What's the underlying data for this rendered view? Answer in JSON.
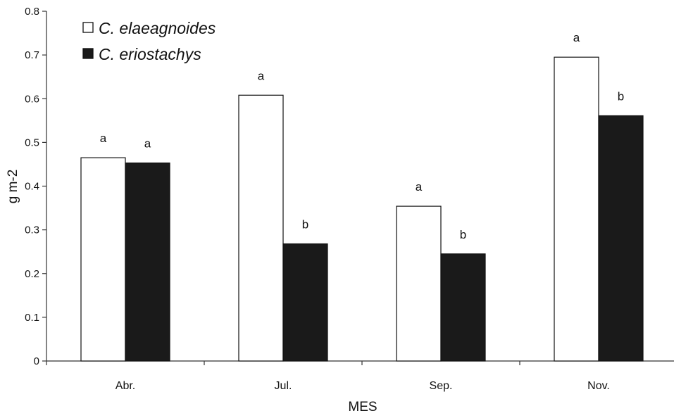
{
  "chart_data": {
    "type": "bar",
    "title": "",
    "xlabel": "MES",
    "ylabel": "g m-2",
    "ylim": [
      0,
      0.8
    ],
    "yticks": [
      0,
      0.1,
      0.2,
      0.3,
      0.4,
      0.5,
      0.6,
      0.7,
      0.8
    ],
    "ytick_labels": [
      "0",
      "0.1",
      "0.2",
      "0.3",
      "0.4",
      "0.5",
      "0.6",
      "0.7",
      "0.8"
    ],
    "categories": [
      "Abr.",
      "Jul.",
      "Sep.",
      "Nov."
    ],
    "series": [
      {
        "name": "C. elaeagnoides",
        "values": [
          0.465,
          0.608,
          0.354,
          0.695
        ],
        "letters": [
          "a",
          "a",
          "a",
          "a"
        ],
        "color": "#ffffff"
      },
      {
        "name": "C. eriostachys",
        "values": [
          0.453,
          0.268,
          0.245,
          0.561
        ],
        "letters": [
          "a",
          "b",
          "b",
          "b"
        ],
        "color": "#1a1a1a"
      }
    ],
    "legend_position": "top-left",
    "grid": false
  }
}
